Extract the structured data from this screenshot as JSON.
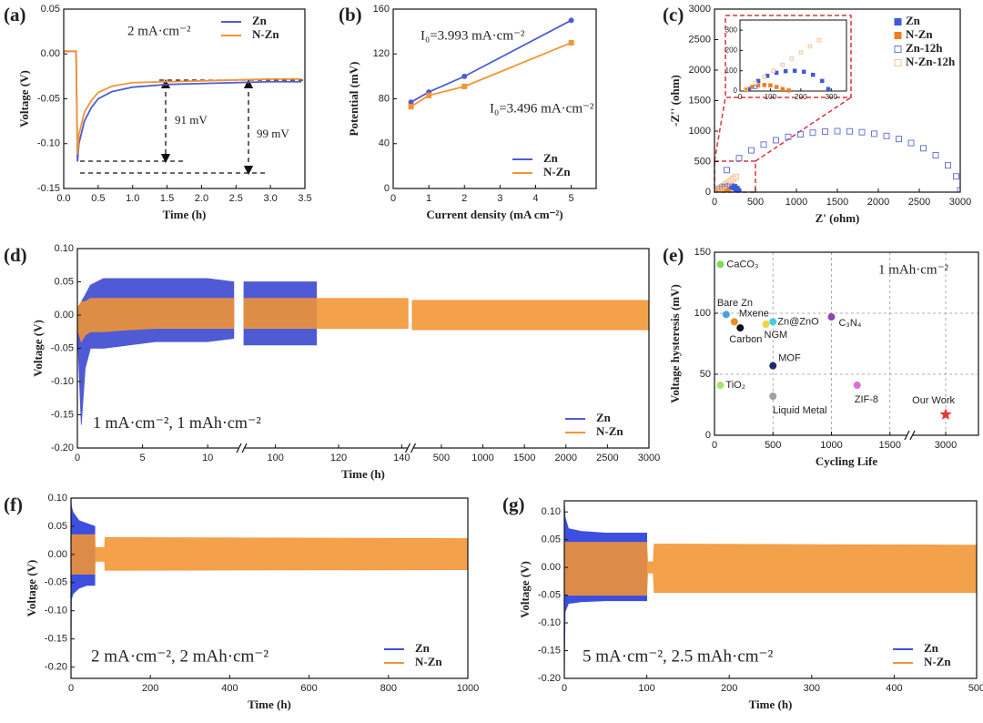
{
  "chart_data": [
    {
      "label": "(a)",
      "type": "line",
      "xlabel": "Time (h)",
      "ylabel": "Voltage (V)",
      "x": [
        0,
        0.18,
        0.2,
        0.22,
        0.3,
        0.4,
        0.5,
        0.7,
        1.0,
        1.5,
        2.0,
        2.5,
        3.0,
        3.45
      ],
      "series": [
        {
          "name": "Zn",
          "color": "#4f5bd5",
          "values": [
            0.003,
            0.003,
            -0.12,
            -0.1,
            -0.075,
            -0.06,
            -0.05,
            -0.042,
            -0.037,
            -0.034,
            -0.033,
            -0.032,
            -0.031,
            -0.031
          ]
        },
        {
          "name": "N-Zn",
          "color": "#f39433",
          "values": [
            0.003,
            0.003,
            -0.112,
            -0.09,
            -0.065,
            -0.052,
            -0.043,
            -0.036,
            -0.032,
            -0.031,
            -0.03,
            -0.029,
            -0.028,
            -0.028
          ]
        }
      ],
      "xlim": [
        0,
        3.5
      ],
      "ylim": [
        -0.15,
        0.05
      ],
      "xticks": [
        {
          "value": 0,
          "label": "0.0"
        },
        0.5,
        {
          "value": 1,
          "label": "1.0"
        },
        1.5,
        {
          "value": 2,
          "label": "2.0"
        },
        2.5,
        {
          "value": 3,
          "label": "3.0"
        },
        3.5
      ],
      "yticks": [
        -0.15,
        {
          "value": -0.1,
          "label": "-0.10"
        },
        -0.05,
        {
          "value": 0,
          "label": "0.00"
        },
        0.05
      ],
      "legend": "upper right",
      "annotations": [
        {
          "text": "2 mA·cm⁻²",
          "color": "#222"
        },
        {
          "text": "91 mV",
          "color": "#e8a33a"
        },
        {
          "text": "99 mV",
          "color": "#4f5bd5"
        }
      ]
    },
    {
      "label": "(b)",
      "type": "line",
      "markers": true,
      "xlabel": "Current density (mA cm⁻²)",
      "ylabel": "Potential (mV)",
      "x": [
        0.5,
        1,
        2,
        5
      ],
      "series": [
        {
          "name": "Zn",
          "color": "#4f5bd5",
          "values": [
            77,
            86,
            100,
            150
          ]
        },
        {
          "name": "N-Zn",
          "color": "#f39433",
          "values": [
            73,
            83,
            91,
            130
          ]
        }
      ],
      "xlim": [
        0,
        5.7
      ],
      "ylim": [
        0,
        160
      ],
      "xticks": [
        0,
        1,
        2,
        3,
        4,
        5
      ],
      "yticks": [
        0,
        40,
        80,
        120,
        160
      ],
      "legend": "lower right",
      "annotations": [
        {
          "text": "I₀=3.993 mA·cm⁻²",
          "color": "#4f5bd5"
        },
        {
          "text": "I₀=3.496 mA·cm⁻²",
          "color": "#f39433"
        }
      ]
    },
    {
      "label": "(c)",
      "type": "scatter",
      "xlabel": "Z' (ohm)",
      "ylabel": "-Z'' (ohm)",
      "series": [
        {
          "name": "Zn",
          "color": "#3b5bdb",
          "hollow": false,
          "x": [
            30,
            60,
            90,
            120,
            150,
            180,
            210,
            240,
            270,
            290
          ],
          "values": [
            10,
            50,
            75,
            90,
            98,
            100,
            95,
            80,
            50,
            10
          ]
        },
        {
          "name": "N-Zn",
          "color": "#f07f1f",
          "hollow": false,
          "x": [
            20,
            40,
            60,
            80,
            100,
            120,
            140,
            160
          ],
          "values": [
            5,
            20,
            28,
            30,
            28,
            20,
            10,
            3
          ]
        },
        {
          "name": "Zn-12h",
          "color": "#6f74d8",
          "hollow": true,
          "x": [
            50,
            150,
            300,
            450,
            600,
            750,
            900,
            1050,
            1200,
            1350,
            1500,
            1650,
            1800,
            1950,
            2100,
            2250,
            2400,
            2550,
            2700,
            2850,
            2950,
            3000
          ],
          "values": [
            20,
            362,
            557,
            685,
            779,
            851,
            906,
            947,
            975,
            993,
            1000,
            996,
            982,
            957,
            921,
            871,
            805,
            719,
            604,
            439,
            258,
            30
          ]
        },
        {
          "name": "N-Zn-12h",
          "color": "#f5c497",
          "hollow": true,
          "x": [
            20,
            50,
            80,
            110,
            140,
            170,
            200,
            230,
            260
          ],
          "values": [
            10,
            40,
            70,
            100,
            130,
            160,
            190,
            220,
            250
          ]
        }
      ],
      "xlim": [
        0,
        3000
      ],
      "ylim": [
        0,
        3000
      ],
      "xticks": [
        0,
        500,
        1000,
        1500,
        2000,
        2500,
        3000
      ],
      "yticks": [
        0,
        500,
        1000,
        1500,
        2000,
        2500,
        3000
      ],
      "legend": "upper right",
      "inset": {
        "xlim": [
          0,
          350
        ],
        "ylim": [
          0,
          350
        ],
        "xticks": [
          0,
          100,
          200,
          300
        ],
        "yticks": [
          0,
          100,
          200,
          300
        ]
      }
    },
    {
      "label": "(d)",
      "type": "band",
      "xlabel": "Time (h)",
      "ylabel": "Voltage (V)",
      "series": [
        {
          "name": "Zn",
          "color": "#4f5bd5",
          "x": [
            0,
            0.3,
            0.6,
            1,
            2,
            4,
            6,
            8,
            10,
            12,
            90,
            113
          ],
          "upper": [
            0.01,
            0.02,
            0.03,
            0.045,
            0.055,
            0.055,
            0.055,
            0.055,
            0.055,
            0.05,
            0.05,
            0.05
          ],
          "lower": [
            -0.02,
            -0.165,
            -0.08,
            -0.05,
            -0.05,
            -0.045,
            -0.04,
            -0.04,
            -0.04,
            -0.035,
            -0.045,
            -0.045
          ]
        },
        {
          "name": "N-Zn",
          "color": "#f39433",
          "x": [
            0,
            0.3,
            0.6,
            1,
            2,
            4,
            6,
            8,
            10,
            12,
            90,
            142,
            150,
            3000
          ],
          "upper": [
            0.01,
            0.02,
            0.02,
            0.025,
            0.025,
            0.025,
            0.025,
            0.025,
            0.025,
            0.025,
            0.025,
            0.025,
            0.022,
            0.022
          ],
          "lower": [
            -0.02,
            -0.04,
            -0.03,
            -0.025,
            -0.025,
            -0.022,
            -0.02,
            -0.02,
            -0.02,
            -0.02,
            -0.02,
            -0.02,
            -0.022,
            -0.022
          ]
        }
      ],
      "xsegments": [
        [
          0,
          12.5
        ],
        [
          90,
          142.5
        ],
        [
          150,
          3000
        ]
      ],
      "ylim": [
        -0.2,
        0.1
      ],
      "xticks": [
        0,
        5,
        10,
        100,
        120,
        140,
        500,
        1000,
        1500,
        2000,
        2500,
        3000
      ],
      "yticks": [
        {
          "value": -0.2,
          "label": "-0.20"
        },
        -0.15,
        {
          "value": -0.1,
          "label": "-0.10"
        },
        -0.05,
        {
          "value": 0,
          "label": "0.00"
        },
        0.05,
        {
          "value": 0.1,
          "label": "0.10"
        }
      ],
      "legend": "lower right",
      "annotations": [
        {
          "text": "1 mA·cm⁻², 1 mAh·cm⁻²",
          "color": "#222"
        }
      ]
    },
    {
      "label": "(e)",
      "type": "scatter",
      "xlabel": "Cycling Life",
      "ylabel": "Voltage hysteresis (mV)",
      "categories": [
        "CaCO₃",
        "Bare Zn",
        "Mxene",
        "Carbon",
        "Zn@ZnO",
        "NGM",
        "C₃N₄",
        "MOF",
        "TiO₂",
        "Liquid Metal",
        "ZIF-8",
        "Our Work"
      ],
      "x": [
        50,
        100,
        170,
        220,
        500,
        440,
        1000,
        500,
        50,
        500,
        1220,
        3000
      ],
      "values": [
        140,
        99,
        93,
        88,
        93,
        91,
        97,
        57,
        41,
        32,
        41,
        17
      ],
      "colors": [
        "#7ed957",
        "#4aa3df",
        "#f08a24",
        "#111111",
        "#3fd0e0",
        "#f5d03b",
        "#8e44ad",
        "#1f2a6b",
        "#a6e36b",
        "#a0a0a0",
        "#e06ad8",
        "#e53935"
      ],
      "markers": [
        "circle",
        "circle",
        "circle",
        "circle",
        "circle",
        "circle",
        "circle",
        "circle",
        "circle",
        "circle",
        "circle",
        "star"
      ],
      "xsegments": [
        [
          0,
          1650
        ],
        [
          2750,
          3250
        ]
      ],
      "ylim": [
        0,
        150
      ],
      "xticks": [
        0,
        500,
        1000,
        1500,
        3000
      ],
      "yticks": [
        0,
        50,
        100,
        150
      ],
      "grid": true,
      "annotations": [
        {
          "text": "1 mAh·cm⁻²",
          "color": "#222"
        }
      ]
    },
    {
      "label": "(f)",
      "type": "band",
      "xlabel": "Time (h)",
      "ylabel": "Voltage (V)",
      "series": [
        {
          "name": "Zn",
          "color": "#3d4fe0",
          "x": [
            0,
            1,
            5,
            20,
            40,
            60
          ],
          "upper": [
            0.1,
            0.085,
            0.075,
            0.06,
            0.055,
            0.05
          ],
          "lower": [
            -0.2,
            -0.08,
            -0.07,
            -0.06,
            -0.055,
            -0.055
          ]
        },
        {
          "name": "N-Zn",
          "color": "#f39433",
          "x": [
            0,
            60,
            61,
            85,
            86,
            1000
          ],
          "upper": [
            0.035,
            0.035,
            0.012,
            0.012,
            0.03,
            0.028
          ],
          "lower": [
            -0.035,
            -0.035,
            -0.012,
            -0.012,
            -0.028,
            -0.027
          ]
        }
      ],
      "xlim": [
        0,
        1000
      ],
      "ylim": [
        -0.22,
        0.1
      ],
      "xticks": [
        0,
        200,
        400,
        600,
        800,
        1000
      ],
      "yticks": [
        {
          "value": -0.2,
          "label": "-0.20"
        },
        -0.15,
        {
          "value": -0.1,
          "label": "-0.10"
        },
        -0.05,
        {
          "value": 0,
          "label": "0.00"
        },
        0.05,
        {
          "value": 0.1,
          "label": "0.10"
        }
      ],
      "legend": "lower right",
      "annotations": [
        {
          "text": "2 mA·cm⁻², 2 mAh·cm⁻²",
          "color": "#222"
        }
      ]
    },
    {
      "label": "(g)",
      "type": "band",
      "xlabel": "Time (h)",
      "ylabel": "Voltage (V)",
      "series": [
        {
          "name": "Zn",
          "color": "#3d4fe0",
          "x": [
            0,
            1,
            5,
            20,
            50,
            100
          ],
          "upper": [
            0.12,
            0.09,
            0.07,
            0.065,
            0.062,
            0.062
          ],
          "lower": [
            -0.2,
            -0.08,
            -0.065,
            -0.062,
            -0.06,
            -0.06
          ]
        },
        {
          "name": "N-Zn",
          "color": "#f39433",
          "x": [
            0,
            100,
            101,
            108,
            109,
            500
          ],
          "upper": [
            0.045,
            0.045,
            0.01,
            0.01,
            0.042,
            0.04
          ],
          "lower": [
            -0.05,
            -0.05,
            -0.01,
            -0.01,
            -0.045,
            -0.045
          ]
        }
      ],
      "xlim": [
        0,
        500
      ],
      "ylim": [
        -0.2,
        0.12
      ],
      "xticks": [
        0,
        100,
        200,
        300,
        400,
        500
      ],
      "yticks": [
        {
          "value": -0.2,
          "label": "-0.20"
        },
        -0.15,
        {
          "value": -0.1,
          "label": "-0.10"
        },
        -0.05,
        {
          "value": 0,
          "label": "0.00"
        },
        0.05,
        {
          "value": 0.1,
          "label": "0.10"
        }
      ],
      "legend": "lower right",
      "annotations": [
        {
          "text": "5 mA·cm⁻², 2.5 mAh·cm⁻²",
          "color": "#222"
        }
      ]
    }
  ]
}
